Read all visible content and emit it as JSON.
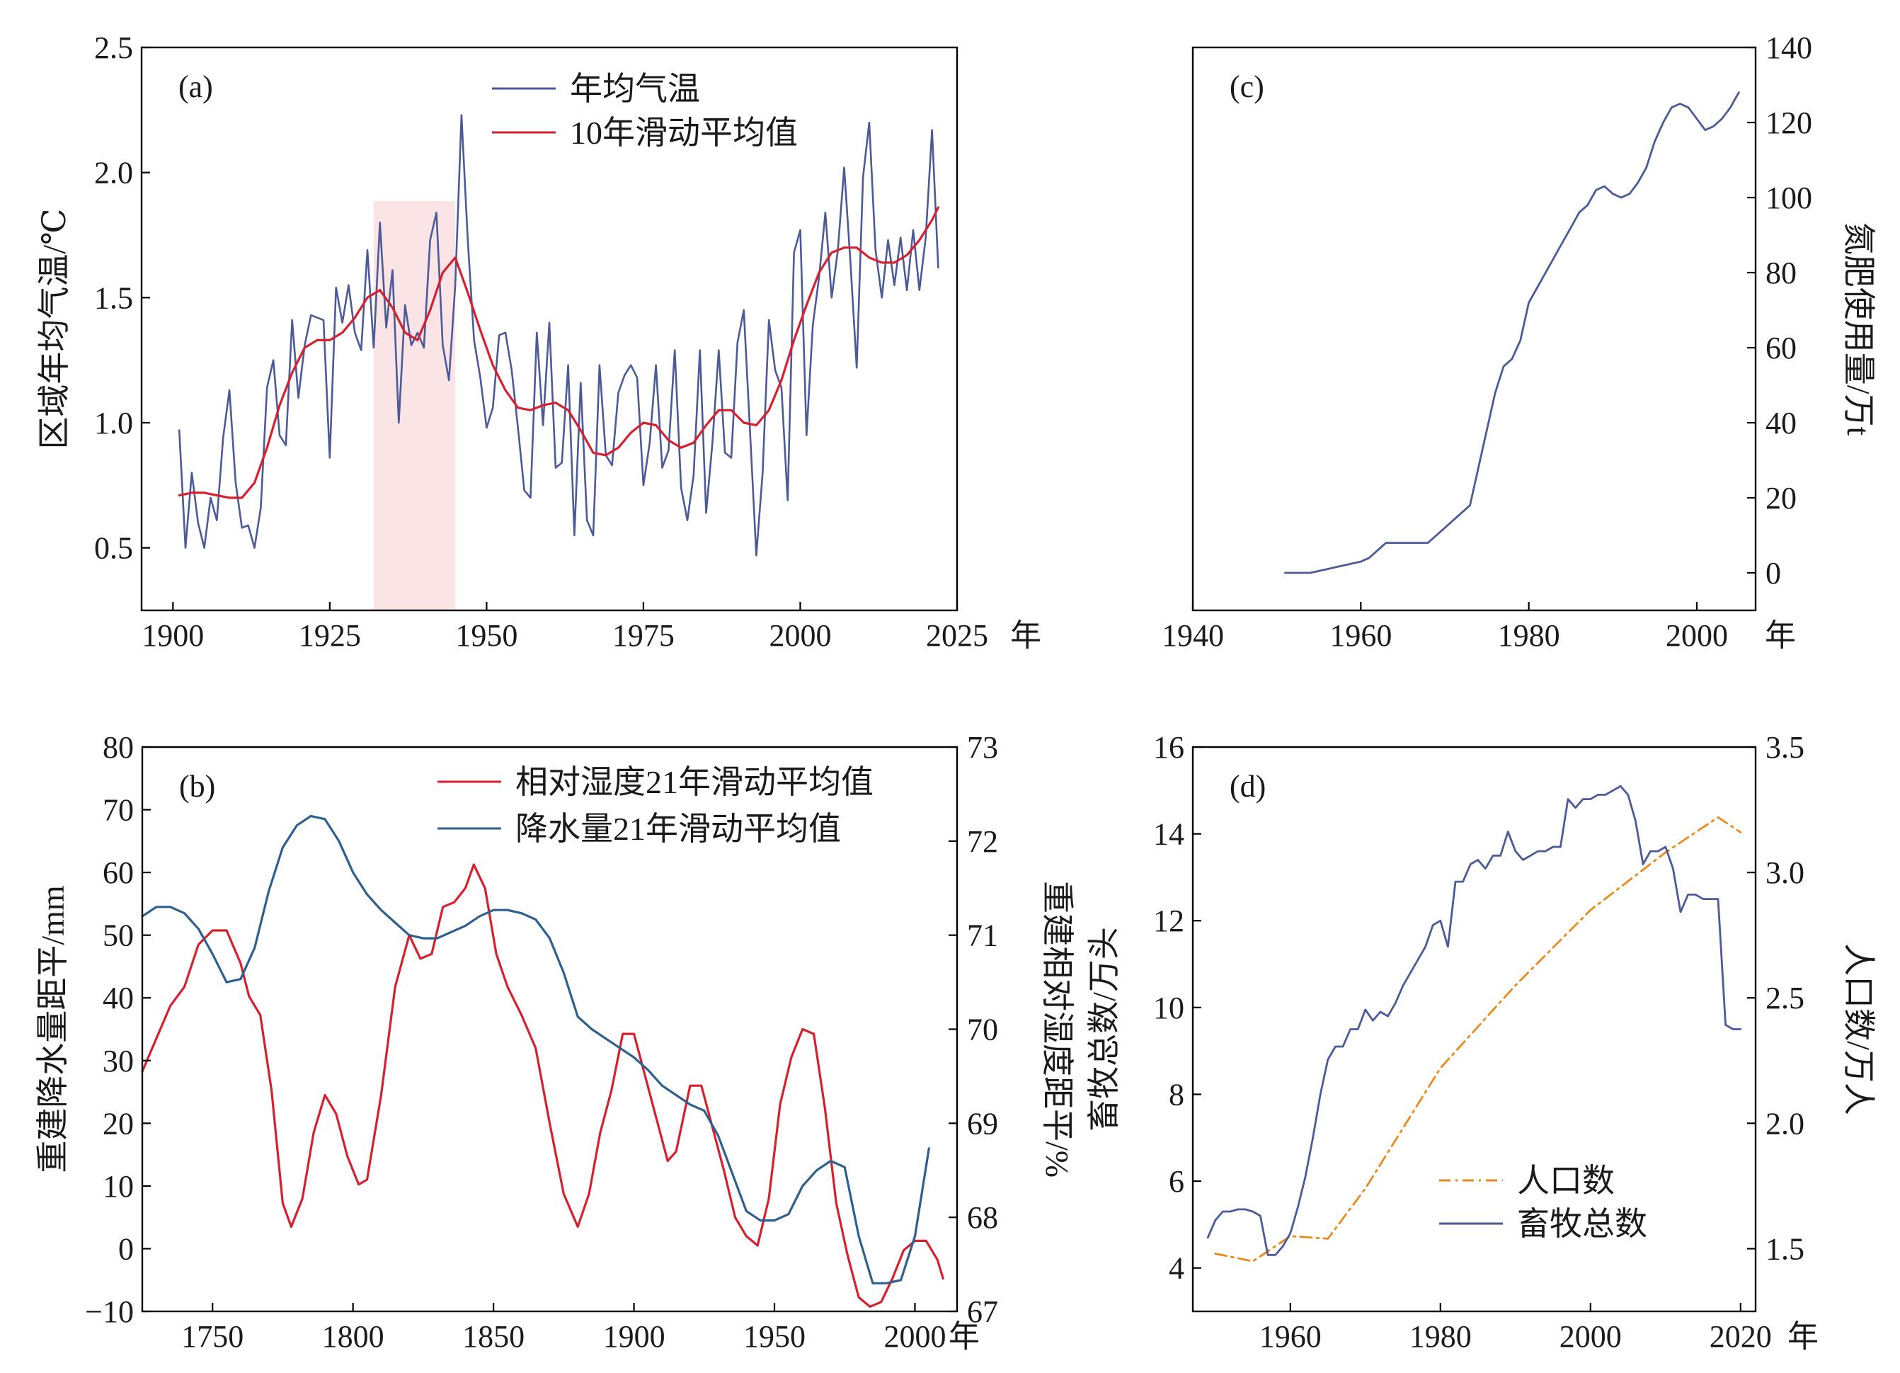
{
  "colors": {
    "blue": "#4c5a97",
    "red": "#d4202f",
    "steel_blue": "#2f5f8c",
    "orange": "#e98a1f",
    "shade": "#f9dfe2"
  },
  "chart_data": [
    {
      "panel": "(a)",
      "type": "line",
      "ylabel": "区域年均气温/℃",
      "xunit": "年",
      "xlim": [
        1895,
        2025
      ],
      "ylim": [
        0.25,
        2.5
      ],
      "xticks": [
        1900,
        1925,
        1950,
        1975,
        2000,
        2025
      ],
      "yticks": [
        0.5,
        1.0,
        1.5,
        2.0,
        2.5
      ],
      "legend": "top-center",
      "grid": false,
      "highlight_band": [
        1932,
        1945
      ],
      "series": [
        {
          "name": "年均气温",
          "color": "#4c5a97",
          "x": [
            1901,
            1902,
            1903,
            1904,
            1905,
            1906,
            1907,
            1908,
            1909,
            1910,
            1911,
            1912,
            1913,
            1914,
            1915,
            1916,
            1917,
            1918,
            1919,
            1920,
            1921,
            1922,
            1923,
            1924,
            1925,
            1926,
            1927,
            1928,
            1929,
            1930,
            1931,
            1932,
            1933,
            1934,
            1935,
            1936,
            1937,
            1938,
            1939,
            1940,
            1941,
            1942,
            1943,
            1944,
            1945,
            1946,
            1947,
            1948,
            1949,
            1950,
            1951,
            1952,
            1953,
            1954,
            1955,
            1956,
            1957,
            1958,
            1959,
            1960,
            1961,
            1962,
            1963,
            1964,
            1965,
            1966,
            1967,
            1968,
            1969,
            1970,
            1971,
            1972,
            1973,
            1974,
            1975,
            1976,
            1977,
            1978,
            1979,
            1980,
            1981,
            1982,
            1983,
            1984,
            1985,
            1986,
            1987,
            1988,
            1989,
            1990,
            1991,
            1992,
            1993,
            1994,
            1995,
            1996,
            1997,
            1998,
            1999,
            2000,
            2001,
            2002,
            2003,
            2004,
            2005,
            2006,
            2007,
            2008,
            2009,
            2010,
            2011,
            2012,
            2013,
            2014,
            2015,
            2016,
            2017,
            2018,
            2019,
            2020,
            2021,
            2022
          ],
          "y": [
            0.97,
            0.5,
            0.8,
            0.6,
            0.5,
            0.7,
            0.61,
            0.94,
            1.13,
            0.76,
            0.58,
            0.59,
            0.5,
            0.66,
            1.14,
            1.25,
            0.95,
            0.91,
            1.41,
            1.1,
            1.31,
            1.43,
            1.42,
            1.41,
            0.86,
            1.54,
            1.4,
            1.55,
            1.36,
            1.29,
            1.69,
            1.3,
            1.8,
            1.38,
            1.61,
            1.0,
            1.47,
            1.31,
            1.36,
            1.3,
            1.73,
            1.84,
            1.31,
            1.17,
            1.55,
            2.23,
            1.73,
            1.33,
            1.18,
            0.98,
            1.06,
            1.35,
            1.36,
            1.21,
            0.98,
            0.73,
            0.7,
            1.36,
            0.99,
            1.4,
            0.82,
            0.84,
            1.23,
            0.55,
            1.16,
            0.61,
            0.55,
            1.23,
            0.87,
            0.83,
            1.12,
            1.19,
            1.23,
            1.18,
            0.75,
            0.92,
            1.23,
            0.82,
            0.89,
            1.29,
            0.74,
            0.61,
            0.79,
            1.29,
            0.64,
            0.92,
            1.29,
            0.88,
            0.86,
            1.32,
            1.45,
            0.96,
            0.47,
            0.8,
            1.41,
            1.21,
            1.14,
            0.69,
            1.68,
            1.77,
            0.95,
            1.39,
            1.58,
            1.84,
            1.5,
            1.69,
            2.02,
            1.64,
            1.22,
            1.98,
            2.2,
            1.69,
            1.5,
            1.73,
            1.55,
            1.74,
            1.53,
            1.77,
            1.53,
            1.74,
            2.17,
            1.62
          ]
        },
        {
          "name": "10年滑动平均值",
          "color": "#d4202f",
          "x": [
            1901,
            1903,
            1905,
            1907,
            1909,
            1911,
            1913,
            1915,
            1917,
            1919,
            1921,
            1923,
            1925,
            1927,
            1929,
            1931,
            1933,
            1935,
            1937,
            1939,
            1941,
            1943,
            1945,
            1947,
            1949,
            1951,
            1953,
            1955,
            1957,
            1959,
            1961,
            1963,
            1965,
            1967,
            1969,
            1971,
            1973,
            1975,
            1977,
            1979,
            1981,
            1983,
            1985,
            1987,
            1989,
            1991,
            1993,
            1995,
            1997,
            1999,
            2001,
            2003,
            2005,
            2007,
            2009,
            2011,
            2013,
            2015,
            2017,
            2019,
            2021,
            2022
          ],
          "y": [
            0.71,
            0.72,
            0.72,
            0.71,
            0.7,
            0.7,
            0.76,
            0.9,
            1.07,
            1.2,
            1.3,
            1.33,
            1.33,
            1.36,
            1.42,
            1.5,
            1.53,
            1.46,
            1.36,
            1.33,
            1.45,
            1.6,
            1.66,
            1.52,
            1.37,
            1.23,
            1.13,
            1.06,
            1.05,
            1.07,
            1.08,
            1.05,
            0.97,
            0.88,
            0.87,
            0.9,
            0.96,
            1.0,
            0.99,
            0.93,
            0.9,
            0.92,
            0.99,
            1.05,
            1.05,
            1.0,
            0.99,
            1.05,
            1.17,
            1.33,
            1.47,
            1.6,
            1.68,
            1.7,
            1.7,
            1.66,
            1.64,
            1.64,
            1.67,
            1.73,
            1.81,
            1.86
          ]
        }
      ]
    },
    {
      "panel": "(b)",
      "type": "line",
      "ylabel": "重建降水量距平/mm",
      "y2label": "重建相对湿度距平/%",
      "xunit": "年",
      "xlim": [
        1725,
        2015
      ],
      "ylim": [
        -10,
        80
      ],
      "y2lim": [
        67,
        73
      ],
      "xticks": [
        1750,
        1800,
        1850,
        1900,
        1950,
        2000
      ],
      "yticks": [
        -10,
        0,
        10,
        20,
        30,
        40,
        50,
        60,
        70,
        80
      ],
      "y2ticks": [
        67,
        68,
        69,
        70,
        71,
        72,
        73
      ],
      "legend": "top-right",
      "grid": false,
      "series": [
        {
          "name": "相对湿度21年滑动平均值",
          "axis": "right",
          "color": "#d4202f",
          "x": [
            1725,
            1730,
            1735,
            1740,
            1745,
            1750,
            1755,
            1760,
            1763,
            1767,
            1771,
            1775,
            1778,
            1782,
            1786,
            1790,
            1794,
            1798,
            1802,
            1805,
            1810,
            1815,
            1820,
            1824,
            1828,
            1832,
            1836,
            1840,
            1843,
            1847,
            1851,
            1855,
            1860,
            1865,
            1870,
            1875,
            1880,
            1884,
            1888,
            1892,
            1896,
            1900,
            1904,
            1908,
            1912,
            1915,
            1920,
            1924,
            1928,
            1932,
            1936,
            1940,
            1944,
            1948,
            1952,
            1956,
            1960,
            1964,
            1968,
            1972,
            1976,
            1980,
            1984,
            1988,
            1992,
            1996,
            2000,
            2004,
            2008,
            2010
          ],
          "y": [
            69.55,
            69.9,
            70.25,
            70.45,
            70.9,
            71.05,
            71.05,
            70.7,
            70.35,
            70.15,
            69.35,
            68.15,
            67.9,
            68.2,
            68.9,
            69.3,
            69.1,
            68.65,
            68.35,
            68.4,
            69.3,
            70.45,
            71.0,
            70.75,
            70.8,
            71.3,
            71.35,
            71.5,
            71.75,
            71.5,
            70.8,
            70.45,
            70.15,
            69.8,
            69.0,
            68.25,
            67.9,
            68.25,
            68.9,
            69.35,
            69.95,
            69.95,
            69.5,
            69.05,
            68.6,
            68.7,
            69.4,
            69.4,
            68.95,
            68.5,
            68.0,
            67.8,
            67.7,
            68.2,
            69.2,
            69.7,
            70.0,
            69.95,
            69.15,
            68.15,
            67.6,
            67.15,
            67.05,
            67.1,
            67.35,
            67.65,
            67.75,
            67.75,
            67.55,
            67.35
          ]
        },
        {
          "name": "降水量21年滑动平均值",
          "axis": "left",
          "color": "#2f5f8c",
          "x": [
            1725,
            1730,
            1735,
            1740,
            1745,
            1750,
            1755,
            1760,
            1765,
            1770,
            1775,
            1780,
            1785,
            1790,
            1795,
            1800,
            1805,
            1810,
            1815,
            1820,
            1825,
            1830,
            1835,
            1840,
            1845,
            1850,
            1855,
            1860,
            1865,
            1870,
            1875,
            1880,
            1885,
            1890,
            1895,
            1900,
            1905,
            1910,
            1915,
            1920,
            1925,
            1930,
            1935,
            1940,
            1945,
            1950,
            1955,
            1960,
            1965,
            1970,
            1975,
            1980,
            1985,
            1990,
            1995,
            2000,
            2005
          ],
          "y": [
            53,
            54.5,
            54.5,
            53.5,
            51,
            47,
            42.5,
            43,
            48,
            57,
            64,
            67.5,
            69,
            68.5,
            65,
            60,
            56.5,
            54,
            52,
            50,
            49.5,
            49.5,
            50.5,
            51.5,
            53,
            54,
            54,
            53.5,
            52.5,
            49.5,
            44,
            37,
            35,
            33.5,
            32,
            30.5,
            28.5,
            26,
            24.5,
            23,
            22,
            18,
            12,
            6,
            4.5,
            4.5,
            5.5,
            10,
            12.5,
            14,
            13,
            2,
            -5.5,
            -5.5,
            -5,
            2,
            16
          ]
        }
      ]
    },
    {
      "panel": "(c)",
      "type": "line",
      "y2label": "氮肥使用量/万t",
      "xunit": "年",
      "xlim": [
        1940,
        2007
      ],
      "ylim": [
        -10,
        140
      ],
      "xticks": [
        1940,
        1960,
        1980,
        2000
      ],
      "y2ticks": [
        0,
        20,
        40,
        60,
        80,
        100,
        120,
        140
      ],
      "grid": false,
      "series": [
        {
          "name": "",
          "axis": "right",
          "color": "#4c5a97",
          "x": [
            1951,
            1952,
            1953,
            1954,
            1955,
            1956,
            1957,
            1958,
            1959,
            1960,
            1961,
            1962,
            1963,
            1964,
            1965,
            1966,
            1967,
            1968,
            1969,
            1970,
            1971,
            1972,
            1973,
            1974,
            1975,
            1976,
            1977,
            1978,
            1979,
            1980,
            1981,
            1982,
            1983,
            1984,
            1985,
            1986,
            1987,
            1988,
            1989,
            1990,
            1991,
            1992,
            1993,
            1994,
            1995,
            1996,
            1997,
            1998,
            1999,
            2000,
            2001,
            2002,
            2003,
            2004,
            2005
          ],
          "y": [
            0,
            0,
            0,
            0,
            0.5,
            1,
            1.5,
            2,
            2.5,
            3,
            4,
            6,
            8,
            8,
            8,
            8,
            8,
            8,
            10,
            12,
            14,
            16,
            18,
            28,
            38,
            48,
            55,
            57,
            62,
            72,
            76,
            80,
            84,
            88,
            92,
            96,
            98,
            102,
            103,
            101,
            100,
            101,
            104,
            108,
            115,
            120,
            124,
            125,
            124,
            121,
            118,
            119,
            121,
            124,
            128
          ]
        }
      ]
    },
    {
      "panel": "(d)",
      "type": "line",
      "ylabel": "畜牧总数/万头",
      "y2label": "人口数/万人",
      "xunit": "年",
      "xlim": [
        1947,
        2022
      ],
      "ylim": [
        3,
        16
      ],
      "y2lim": [
        1.25,
        3.5
      ],
      "xticks": [
        1960,
        1980,
        2000,
        2020
      ],
      "yticks": [
        4,
        6,
        8,
        10,
        12,
        14,
        16
      ],
      "y2ticks": [
        1.5,
        2.0,
        2.5,
        3.0,
        3.5
      ],
      "legend": "bottom-center",
      "grid": false,
      "series": [
        {
          "name": "人口数",
          "axis": "right",
          "color": "#e98a1f",
          "style": "dash-dot",
          "x": [
            1950,
            1955,
            1960,
            1965,
            1970,
            1980,
            1990,
            2000,
            2010,
            2017,
            2020
          ],
          "y": [
            1.48,
            1.45,
            1.55,
            1.54,
            1.74,
            2.22,
            2.55,
            2.85,
            3.08,
            3.22,
            3.16
          ]
        },
        {
          "name": "畜牧总数",
          "axis": "left",
          "color": "#4c5a97",
          "x": [
            1949,
            1950,
            1951,
            1952,
            1953,
            1954,
            1955,
            1956,
            1957,
            1958,
            1959,
            1960,
            1961,
            1962,
            1963,
            1964,
            1965,
            1966,
            1967,
            1968,
            1969,
            1970,
            1971,
            1972,
            1973,
            1974,
            1975,
            1976,
            1977,
            1978,
            1979,
            1980,
            1981,
            1982,
            1983,
            1984,
            1985,
            1986,
            1987,
            1988,
            1989,
            1990,
            1991,
            1992,
            1993,
            1994,
            1995,
            1996,
            1997,
            1998,
            1999,
            2000,
            2001,
            2002,
            2003,
            2004,
            2005,
            2006,
            2007,
            2008,
            2009,
            2010,
            2011,
            2012,
            2013,
            2014,
            2015,
            2016,
            2017,
            2018,
            2019,
            2020
          ],
          "y": [
            4.7,
            5.1,
            5.3,
            5.3,
            5.35,
            5.35,
            5.3,
            5.2,
            4.3,
            4.3,
            4.5,
            4.8,
            5.4,
            6.1,
            7,
            8,
            8.8,
            9.1,
            9.1,
            9.5,
            9.5,
            9.95,
            9.7,
            9.9,
            9.8,
            10.1,
            10.5,
            10.8,
            11.1,
            11.4,
            11.9,
            12.0,
            11.4,
            12.9,
            12.9,
            13.3,
            13.4,
            13.2,
            13.5,
            13.5,
            14.05,
            13.6,
            13.4,
            13.5,
            13.6,
            13.6,
            13.7,
            13.7,
            14.8,
            14.6,
            14.8,
            14.8,
            14.9,
            14.9,
            15.0,
            15.1,
            14.9,
            14.3,
            13.3,
            13.6,
            13.6,
            13.7,
            13.2,
            12.2,
            12.6,
            12.6,
            12.5,
            12.5,
            12.5,
            9.6,
            9.5,
            9.5
          ]
        }
      ]
    }
  ]
}
